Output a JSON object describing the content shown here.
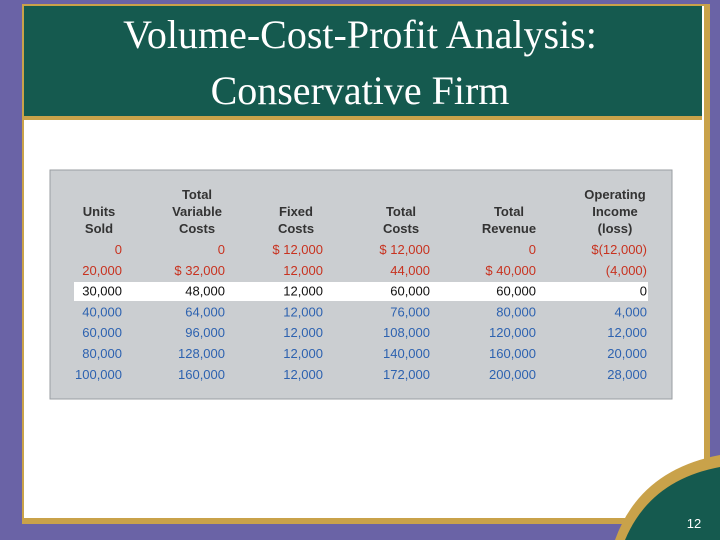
{
  "slide": {
    "title_lines": [
      "Volume-Cost-Profit Analysis:",
      "Conservative Firm"
    ],
    "table": {
      "headers": [
        [
          "Units",
          "Sold"
        ],
        [
          "Total",
          "Variable",
          "Costs"
        ],
        [
          "Fixed",
          "Costs"
        ],
        [
          "Total",
          "Costs"
        ],
        [
          "Total",
          "Revenue"
        ],
        [
          "Operating",
          "Income",
          "(loss)"
        ]
      ],
      "rows": [
        [
          "0",
          "0",
          "$ 12,000",
          "$ 12,000",
          "0",
          "$(12,000)"
        ],
        [
          "20,000",
          "$ 32,000",
          "12,000",
          "44,000",
          "$ 40,000",
          "(4,000)"
        ],
        [
          "30,000",
          "48,000",
          "12,000",
          "60,000",
          "60,000",
          "0"
        ],
        [
          "40,000",
          "64,000",
          "12,000",
          "76,000",
          "80,000",
          "4,000"
        ],
        [
          "60,000",
          "96,000",
          "12,000",
          "108,000",
          "120,000",
          "12,000"
        ],
        [
          "80,000",
          "128,000",
          "12,000",
          "140,000",
          "160,000",
          "20,000"
        ],
        [
          "100,000",
          "160,000",
          "12,000",
          "172,000",
          "200,000",
          "28,000"
        ]
      ]
    },
    "page_number": "12"
  }
}
